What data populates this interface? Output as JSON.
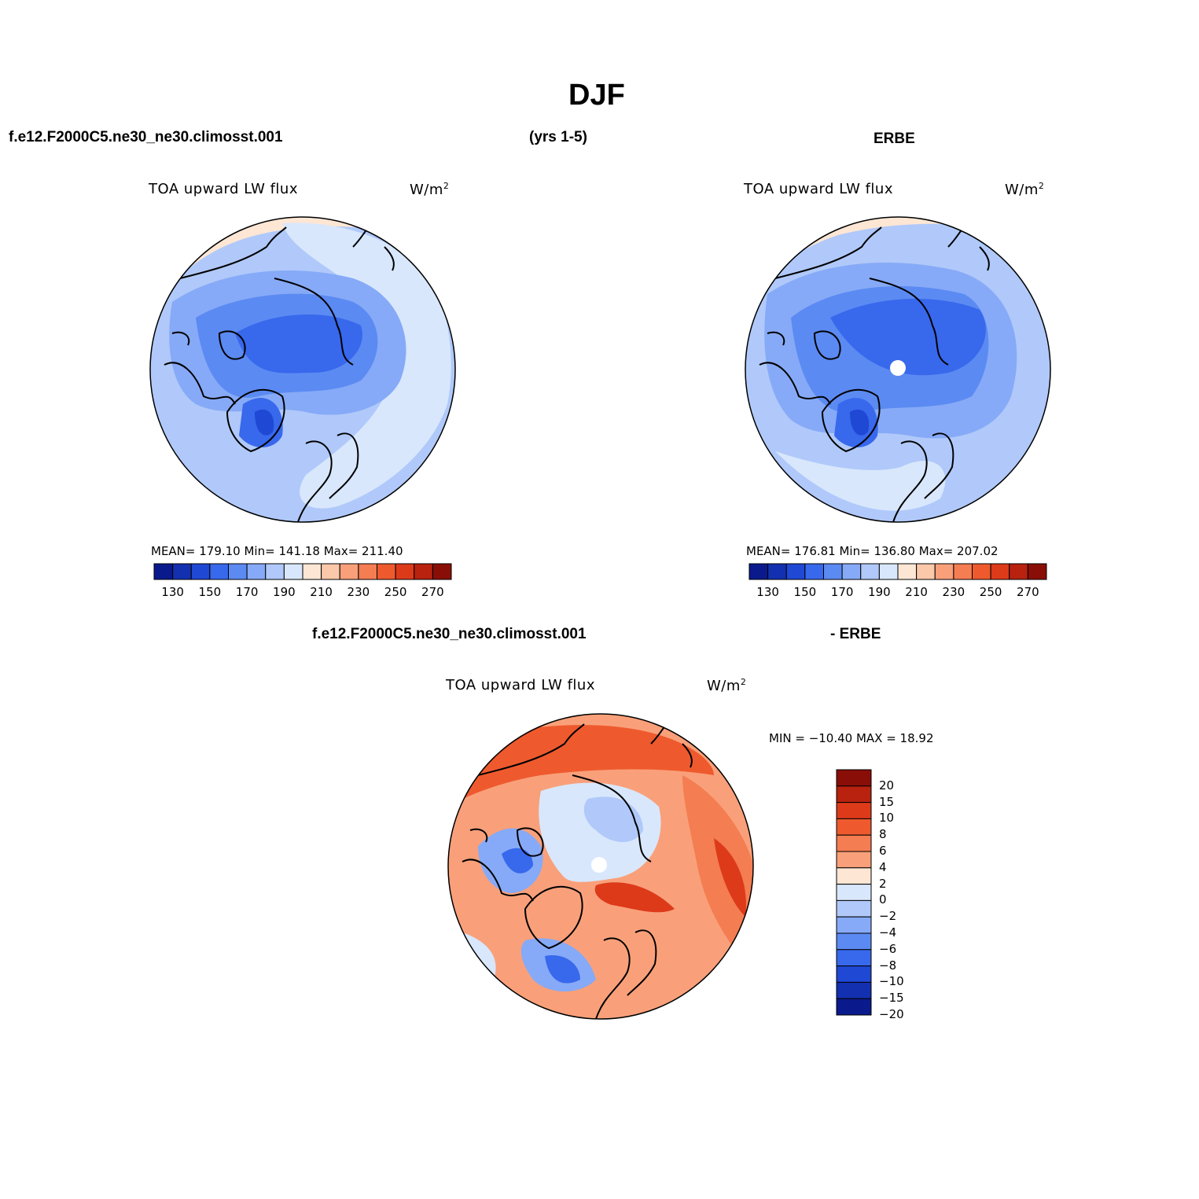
{
  "title": "DJF",
  "header_left": "f.e12.F2000C5.ne30_ne30.climosst.001",
  "header_mid": "(yrs 1-5)",
  "header_right": "ERBE",
  "diff_header_left": "f.e12.F2000C5.ne30_ne30.climosst.001",
  "diff_header_right": "- ERBE",
  "panels": [
    {
      "variable": "TOA upward LW flux",
      "units": "W/m",
      "units_sup": "2",
      "stats": "MEAN= 179.10   Min= 141.18   Max= 211.40",
      "mean": 179.1,
      "min": 141.18,
      "max": 211.4
    },
    {
      "variable": "TOA upward LW flux",
      "units": "W/m",
      "units_sup": "2",
      "stats": "MEAN= 176.81   Min= 136.80   Max= 207.02",
      "mean": 176.81,
      "min": 136.8,
      "max": 207.02
    },
    {
      "variable": "TOA upward LW flux",
      "units": "W/m",
      "units_sup": "2",
      "stats": "MIN = −10.40 MAX =   18.92",
      "min": -10.4,
      "max": 18.92
    }
  ],
  "colorbar_abs": {
    "colors": [
      "#0a1a8c",
      "#1330b0",
      "#1f48d4",
      "#3868ec",
      "#5b8af2",
      "#86aaf7",
      "#b0c9fa",
      "#d8e7fc",
      "#fde6d4",
      "#fbc8aa",
      "#f9a07a",
      "#f47d52",
      "#ee5a2e",
      "#dd3a1a",
      "#b8220f",
      "#8a0e08"
    ],
    "tick_labels": [
      "130",
      "150",
      "170",
      "190",
      "210",
      "230",
      "250",
      "270"
    ]
  },
  "colorbar_diff": {
    "colors": [
      "#8a0e08",
      "#b8220f",
      "#dd3a1a",
      "#ee5a2e",
      "#f47d52",
      "#f9a07a",
      "#fde6d4",
      "#d8e7fc",
      "#b0c9fa",
      "#86aaf7",
      "#5b8af2",
      "#3868ec",
      "#1f48d4",
      "#1330b0",
      "#0a1a8c"
    ],
    "tick_labels": [
      "20",
      "15",
      "10",
      "8",
      "6",
      "4",
      "2",
      "0",
      "−2",
      "−4",
      "−6",
      "−8",
      "−10",
      "−15",
      "−20"
    ]
  },
  "map_colors": {
    "outer": "#fde6d4",
    "light_blue": "#d8e7fc",
    "blue1": "#b0c9fa",
    "blue2": "#86aaf7",
    "blue3": "#5b8af2",
    "blue4": "#3868ec",
    "blue5": "#1f48d4",
    "red1": "#f9a07a",
    "red2": "#f47d52",
    "red3": "#ee5a2e",
    "red4": "#dd3a1a",
    "pole": "#ffffff"
  }
}
